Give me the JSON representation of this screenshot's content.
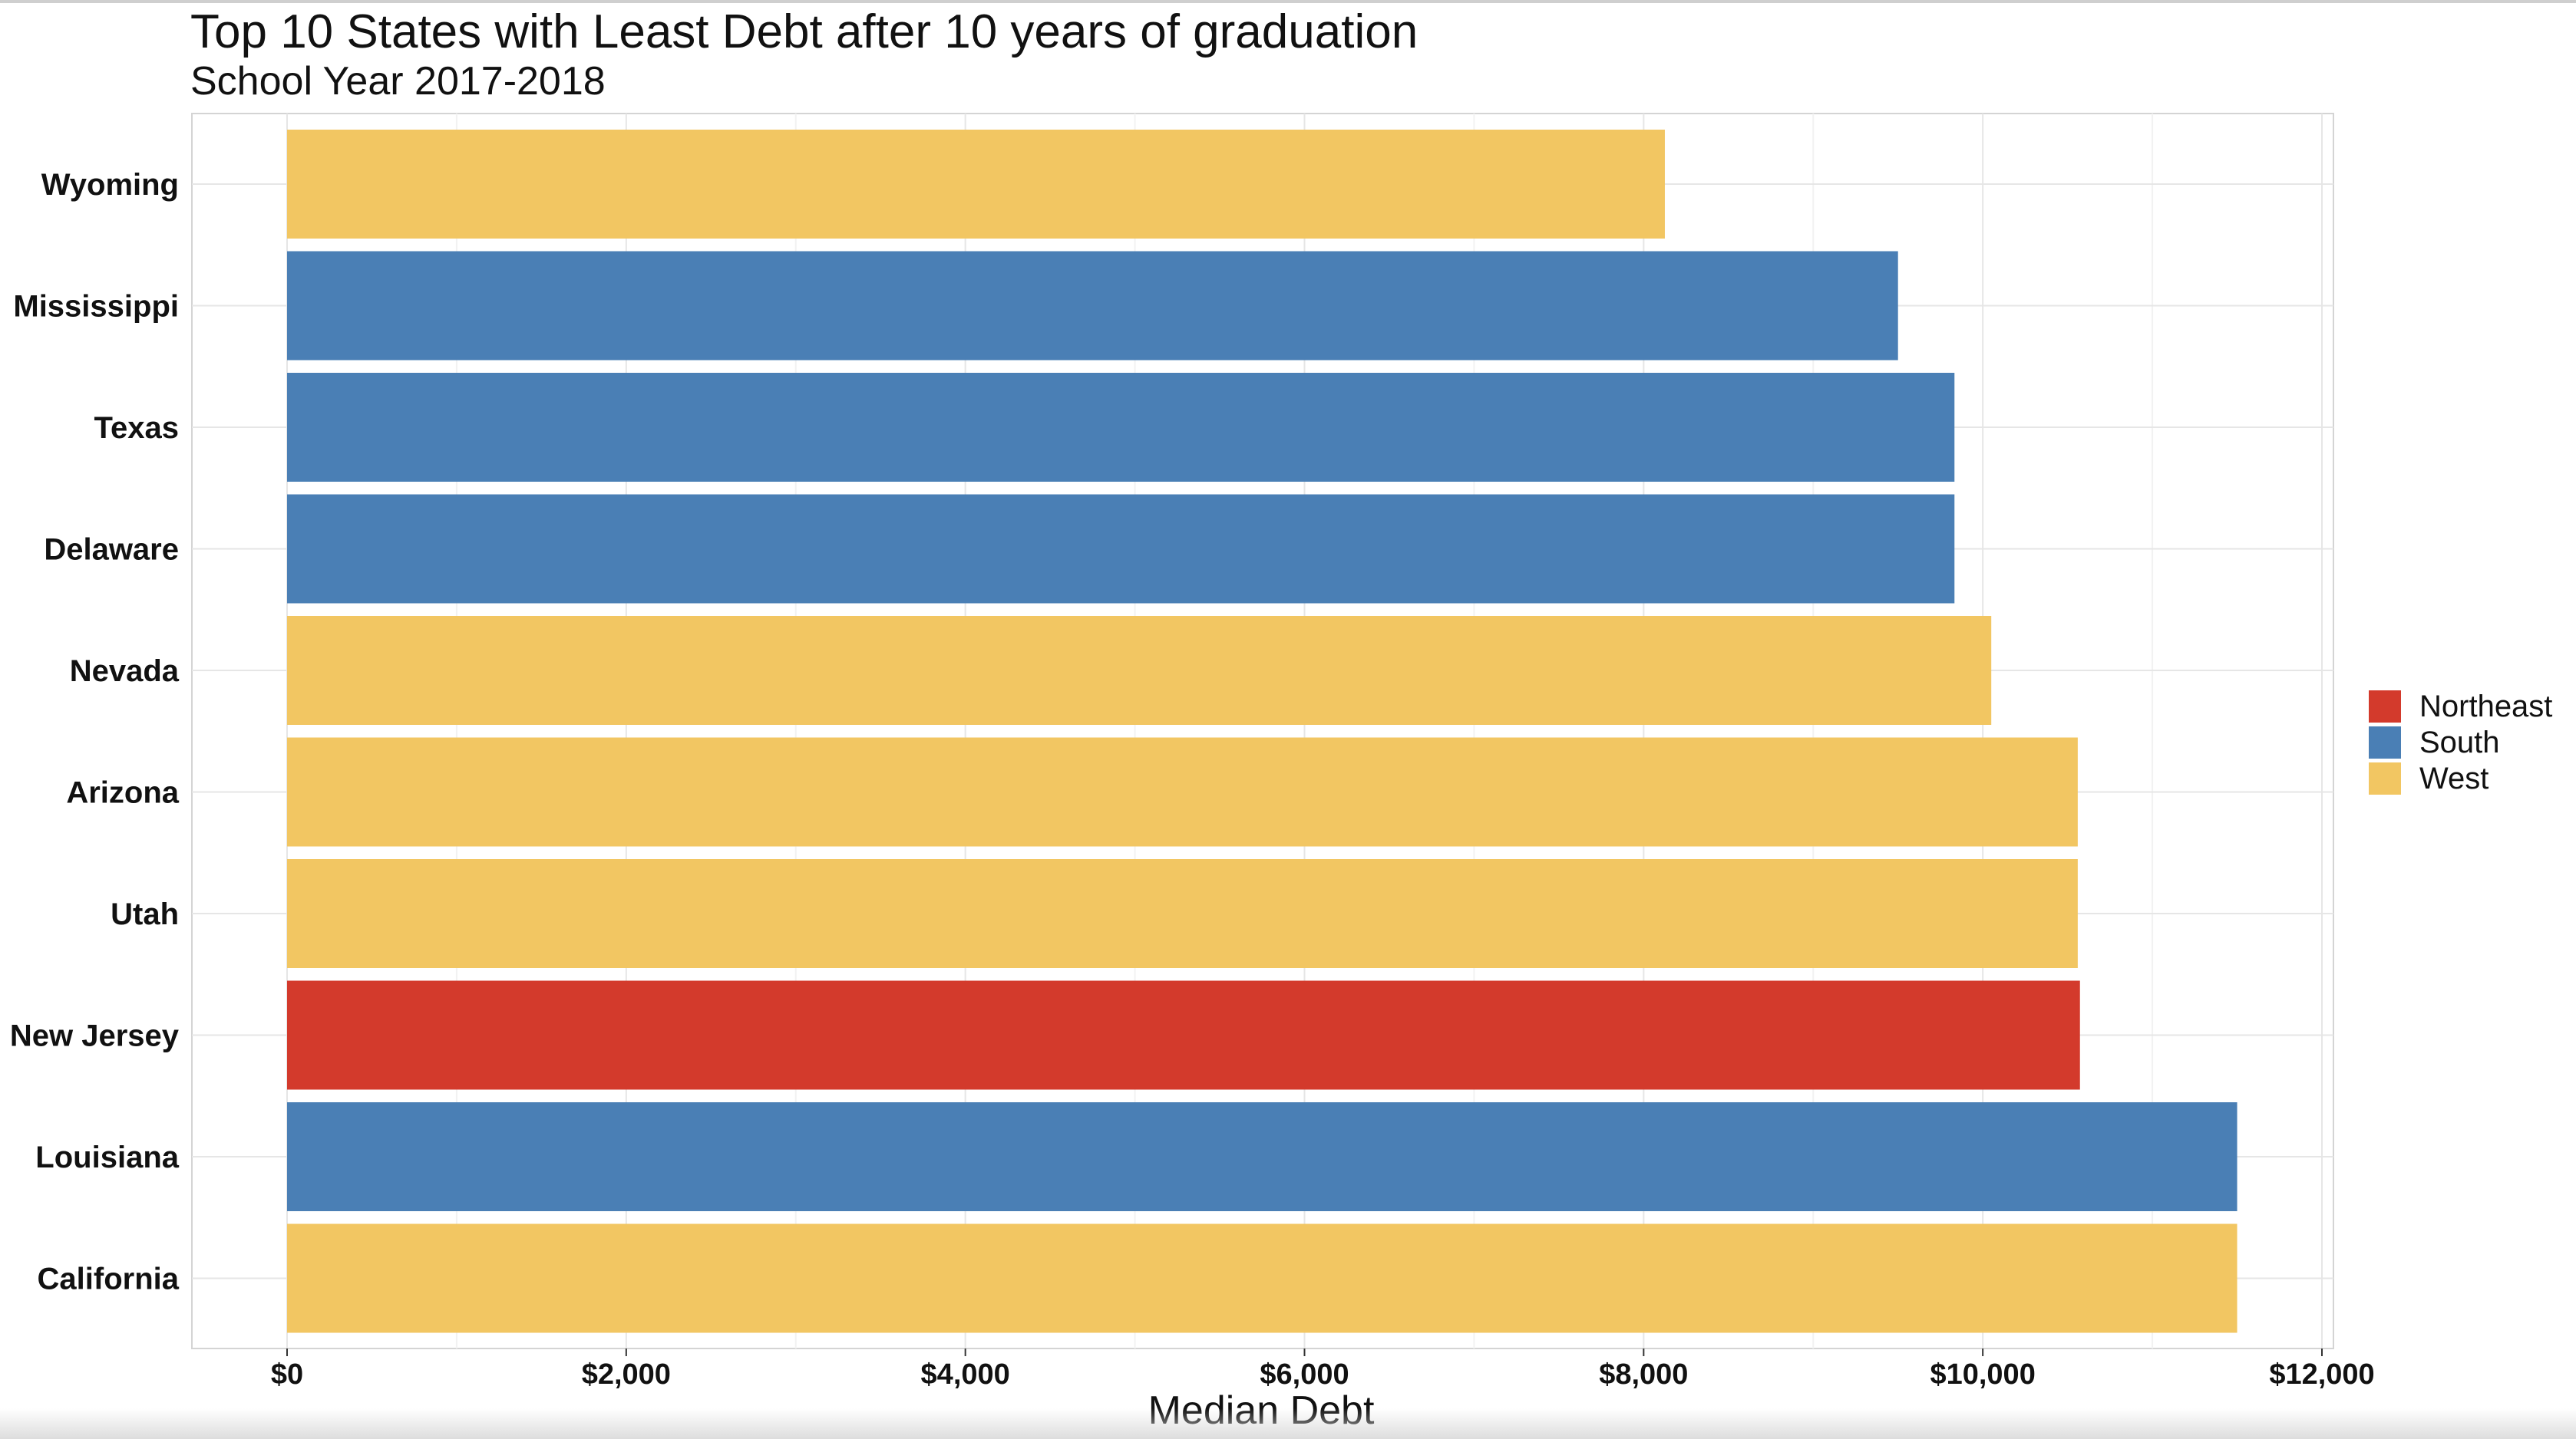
{
  "chart_data": {
    "type": "bar",
    "orientation": "horizontal",
    "title": "Top 10 States with Least Debt after 10 years of graduation",
    "subtitle": "School Year 2017-2018",
    "xlabel": "Median Debt",
    "ylabel": "",
    "xlim": [
      0,
      12000
    ],
    "xticks": [
      0,
      2000,
      4000,
      6000,
      8000,
      10000,
      12000
    ],
    "xtick_labels": [
      "$0",
      "$2,000",
      "$4,000",
      "$6,000",
      "$8,000",
      "$10,000",
      "$12,000"
    ],
    "grid": true,
    "legend_position": "right",
    "categories": [
      "Wyoming",
      "Mississippi",
      "Texas",
      "Delaware",
      "Nevada",
      "Arizona",
      "Utah",
      "New Jersey",
      "Louisiana",
      "California"
    ],
    "values": [
      8125,
      9500,
      9833,
      9833,
      10050,
      10560,
      10560,
      10573,
      11500,
      11500
    ],
    "groups": [
      "West",
      "South",
      "South",
      "South",
      "West",
      "West",
      "West",
      "Northeast",
      "South",
      "West"
    ],
    "legend": [
      {
        "name": "Northeast",
        "color": "#d33a2c"
      },
      {
        "name": "South",
        "color": "#4a7fb5"
      },
      {
        "name": "West",
        "color": "#f2c662"
      }
    ]
  }
}
